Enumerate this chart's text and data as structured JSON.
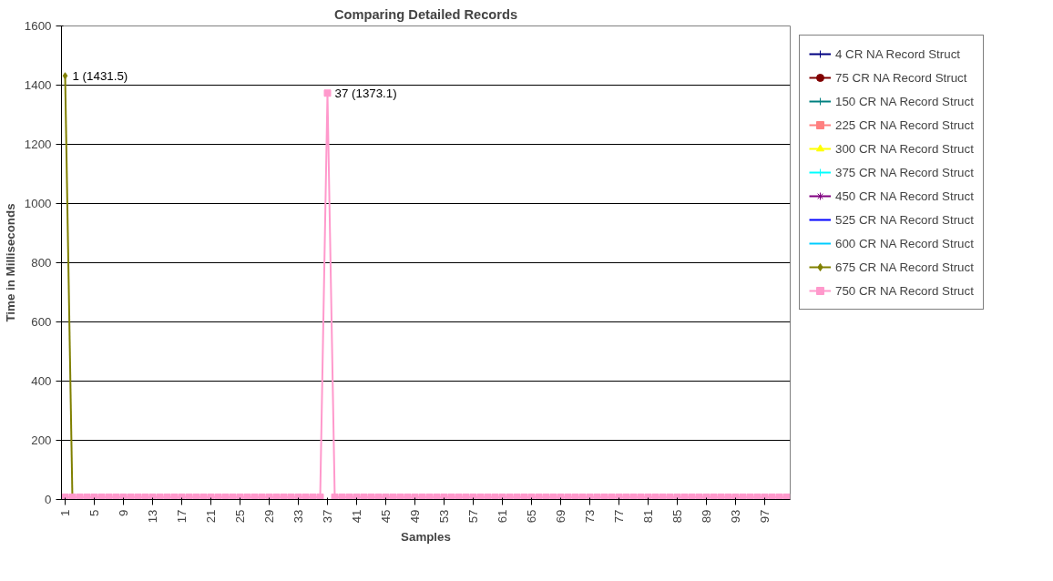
{
  "chart_data": {
    "type": "line",
    "title": "Comparing Detailed Records",
    "xlabel": "Samples",
    "ylabel": "Time in Milliseconds",
    "categories": [
      "1",
      null,
      null,
      null,
      "5",
      null,
      null,
      null,
      "9",
      null,
      null,
      null,
      "13",
      null,
      null,
      null,
      "17",
      null,
      null,
      null,
      "21",
      null,
      null,
      null,
      "25",
      null,
      null,
      null,
      "29",
      null,
      null,
      null,
      "33",
      null,
      null,
      null,
      "37",
      null,
      null,
      null,
      "41",
      null,
      null,
      null,
      "45",
      null,
      null,
      null,
      "49",
      null,
      null,
      null,
      "53",
      null,
      null,
      null,
      "57",
      null,
      null,
      null,
      "61",
      null,
      null,
      null,
      "65",
      null,
      null,
      null,
      "69",
      null,
      null,
      null,
      "73",
      null,
      null,
      null,
      "77",
      null,
      null,
      null,
      "81",
      null,
      null,
      null,
      "85",
      null,
      null,
      null,
      "89",
      null,
      null,
      null,
      "93",
      null,
      null,
      null,
      "97",
      null,
      null,
      null
    ],
    "ylim": [
      0,
      1600
    ],
    "yticks": [
      0,
      200,
      400,
      600,
      800,
      1000,
      1200,
      1400,
      1600
    ],
    "grid": "y",
    "legend": "right",
    "series": [
      {
        "name": "4 CR NA Record Struct",
        "color": "#000080",
        "marker": "cross",
        "values": [
          null,
          null,
          null,
          null,
          null,
          null,
          null,
          null,
          null,
          null,
          null,
          null,
          null,
          null,
          null,
          null,
          null,
          null,
          null,
          null,
          null,
          null,
          null,
          null,
          null,
          null,
          null,
          null,
          null,
          null,
          null,
          null,
          null,
          null,
          null,
          null,
          null,
          null,
          null,
          null,
          null,
          null,
          null,
          null,
          null,
          null,
          null,
          null,
          null,
          null,
          null,
          null,
          null,
          null,
          null,
          null,
          null,
          null,
          null,
          null,
          null,
          null,
          null,
          null,
          null,
          null,
          null,
          null,
          null,
          null,
          null,
          null,
          null,
          null,
          null,
          null,
          null,
          null,
          null,
          null,
          null,
          null,
          null,
          null,
          null,
          null,
          null,
          null,
          null,
          null,
          null,
          null,
          null,
          null,
          null,
          null,
          null,
          null,
          null,
          null
        ]
      },
      {
        "name": "75 CR NA Record Struct",
        "color": "#800000",
        "marker": "circle",
        "values": [
          null,
          null,
          null,
          null,
          null,
          null,
          null,
          null,
          null,
          null,
          null,
          null,
          null,
          null,
          null,
          null,
          null,
          null,
          null,
          null,
          null,
          null,
          null,
          null,
          null,
          null,
          null,
          null,
          null,
          null,
          null,
          null,
          null,
          null,
          null,
          null,
          null,
          null,
          null,
          null,
          null,
          null,
          null,
          null,
          null,
          null,
          null,
          null,
          null,
          null,
          null,
          null,
          null,
          null,
          null,
          null,
          null,
          null,
          null,
          null,
          null,
          null,
          null,
          null,
          null,
          null,
          null,
          null,
          null,
          null,
          null,
          null,
          null,
          null,
          null,
          null,
          null,
          null,
          null,
          null,
          null,
          null,
          null,
          null,
          null,
          null,
          null,
          null,
          null,
          null,
          null,
          null,
          null,
          null,
          null,
          null,
          null,
          null,
          null,
          null
        ]
      },
      {
        "name": "150 CR NA Record Struct",
        "color": "#008080",
        "marker": "cross",
        "values": [
          null,
          null,
          null,
          null,
          null,
          null,
          null,
          null,
          null,
          null,
          null,
          null,
          null,
          null,
          null,
          null,
          null,
          null,
          null,
          null,
          null,
          null,
          null,
          null,
          null,
          null,
          null,
          null,
          null,
          null,
          null,
          null,
          null,
          null,
          null,
          null,
          null,
          null,
          null,
          null,
          null,
          null,
          null,
          null,
          null,
          null,
          null,
          null,
          null,
          null,
          null,
          null,
          null,
          null,
          null,
          null,
          null,
          null,
          null,
          null,
          null,
          null,
          null,
          null,
          null,
          null,
          null,
          null,
          null,
          null,
          null,
          null,
          null,
          null,
          null,
          null,
          null,
          null,
          null,
          null,
          null,
          null,
          null,
          null,
          null,
          null,
          null,
          null,
          null,
          null,
          null,
          null,
          null,
          null,
          null,
          null,
          null,
          null,
          null,
          null
        ]
      },
      {
        "name": "225 CR NA Record Struct",
        "color": "#ff8080",
        "marker": "square",
        "values": [
          null,
          null,
          null,
          null,
          null,
          null,
          null,
          null,
          null,
          null,
          null,
          null,
          null,
          null,
          null,
          null,
          null,
          null,
          null,
          null,
          null,
          null,
          null,
          null,
          null,
          null,
          null,
          null,
          null,
          null,
          null,
          null,
          null,
          null,
          null,
          null,
          null,
          null,
          null,
          null,
          null,
          null,
          null,
          null,
          null,
          null,
          null,
          null,
          null,
          null,
          null,
          null,
          null,
          null,
          null,
          null,
          null,
          null,
          null,
          null,
          null,
          null,
          null,
          null,
          null,
          null,
          null,
          null,
          null,
          null,
          null,
          null,
          null,
          null,
          null,
          null,
          null,
          null,
          null,
          null,
          null,
          null,
          null,
          null,
          null,
          null,
          null,
          null,
          null,
          null,
          null,
          null,
          null,
          null,
          null,
          null,
          null,
          null,
          null,
          null
        ]
      },
      {
        "name": "300 CR NA Record Struct",
        "color": "#ffff00",
        "marker": "triangle",
        "values": [
          null,
          null,
          null,
          null,
          null,
          null,
          null,
          null,
          null,
          null,
          null,
          null,
          null,
          null,
          null,
          null,
          null,
          null,
          null,
          null,
          null,
          null,
          null,
          null,
          null,
          null,
          null,
          null,
          null,
          null,
          null,
          null,
          null,
          null,
          null,
          null,
          null,
          null,
          null,
          null,
          null,
          null,
          null,
          null,
          null,
          null,
          null,
          null,
          null,
          null,
          null,
          null,
          null,
          null,
          null,
          null,
          null,
          null,
          null,
          null,
          null,
          null,
          null,
          null,
          null,
          null,
          null,
          null,
          null,
          null,
          null,
          null,
          null,
          null,
          null,
          null,
          null,
          null,
          null,
          null,
          null,
          null,
          null,
          null,
          null,
          null,
          null,
          null,
          null,
          null,
          null,
          null,
          null,
          null,
          null,
          null,
          null,
          null,
          null,
          null
        ]
      },
      {
        "name": "375 CR NA Record Struct",
        "color": "#00ffff",
        "marker": "cross",
        "values": [
          null,
          null,
          null,
          null,
          null,
          null,
          null,
          null,
          null,
          null,
          null,
          null,
          null,
          null,
          null,
          null,
          null,
          null,
          null,
          null,
          null,
          null,
          null,
          null,
          null,
          null,
          null,
          null,
          null,
          null,
          null,
          null,
          null,
          null,
          null,
          null,
          null,
          null,
          null,
          null,
          null,
          null,
          null,
          null,
          null,
          null,
          null,
          null,
          null,
          null,
          null,
          null,
          null,
          null,
          null,
          null,
          null,
          null,
          null,
          null,
          null,
          null,
          null,
          null,
          null,
          null,
          null,
          null,
          null,
          null,
          null,
          null,
          null,
          null,
          null,
          null,
          null,
          null,
          null,
          null,
          null,
          null,
          null,
          null,
          null,
          null,
          null,
          null,
          null,
          null,
          null,
          null,
          null,
          null,
          null,
          null,
          null,
          null,
          null,
          null
        ]
      },
      {
        "name": "450 CR NA Record Struct",
        "color": "#800080",
        "marker": "star",
        "values": [
          null,
          null,
          null,
          null,
          null,
          null,
          null,
          null,
          null,
          null,
          null,
          null,
          null,
          null,
          null,
          null,
          null,
          null,
          null,
          null,
          null,
          null,
          null,
          null,
          null,
          null,
          null,
          null,
          null,
          null,
          null,
          null,
          null,
          null,
          null,
          null,
          null,
          null,
          null,
          null,
          null,
          null,
          null,
          null,
          null,
          null,
          null,
          null,
          null,
          null,
          null,
          null,
          null,
          null,
          null,
          null,
          null,
          null,
          null,
          null,
          null,
          null,
          null,
          null,
          null,
          null,
          null,
          null,
          null,
          null,
          null,
          null,
          null,
          null,
          null,
          null,
          null,
          null,
          null,
          null,
          null,
          null,
          null,
          null,
          null,
          null,
          null,
          null,
          null,
          null,
          null,
          null,
          null,
          null,
          null,
          null,
          null,
          null,
          null,
          null
        ]
      },
      {
        "name": "525 CR NA Record Struct",
        "color": "#0000ff",
        "marker": "none",
        "values": [
          null,
          null,
          null,
          null,
          null,
          null,
          null,
          null,
          null,
          null,
          null,
          null,
          null,
          null,
          null,
          null,
          null,
          null,
          null,
          null,
          null,
          null,
          null,
          null,
          null,
          null,
          null,
          null,
          null,
          null,
          null,
          null,
          null,
          null,
          null,
          null,
          null,
          null,
          null,
          null,
          null,
          null,
          null,
          null,
          null,
          null,
          null,
          null,
          null,
          null,
          null,
          null,
          null,
          null,
          null,
          null,
          null,
          null,
          null,
          null,
          null,
          null,
          null,
          null,
          null,
          null,
          null,
          null,
          null,
          null,
          null,
          null,
          null,
          null,
          null,
          null,
          null,
          null,
          null,
          null,
          null,
          null,
          null,
          null,
          null,
          null,
          null,
          null,
          null,
          null,
          null,
          null,
          null,
          null,
          null,
          null,
          null,
          null,
          null,
          null
        ]
      },
      {
        "name": "600 CR NA Record Struct",
        "color": "#00ccff",
        "marker": "none",
        "values": [
          null,
          null,
          null,
          null,
          null,
          null,
          null,
          null,
          null,
          null,
          null,
          null,
          null,
          null,
          null,
          null,
          null,
          null,
          null,
          null,
          null,
          null,
          null,
          null,
          null,
          null,
          null,
          null,
          null,
          null,
          null,
          null,
          null,
          null,
          null,
          null,
          null,
          null,
          null,
          null,
          null,
          null,
          null,
          null,
          null,
          null,
          null,
          null,
          null,
          null,
          null,
          null,
          null,
          null,
          null,
          null,
          null,
          null,
          null,
          null,
          null,
          null,
          null,
          null,
          null,
          null,
          null,
          null,
          null,
          null,
          null,
          null,
          null,
          null,
          null,
          null,
          null,
          null,
          null,
          null,
          null,
          null,
          null,
          null,
          null,
          null,
          null,
          null,
          null,
          null,
          null,
          null,
          null,
          null,
          null,
          null,
          null,
          null,
          null,
          null
        ]
      },
      {
        "name": "675 CR NA Record Struct",
        "color": "#808000",
        "marker": "diamond",
        "values": [
          1431.5,
          2,
          null,
          null,
          null,
          null,
          null,
          null,
          null,
          null,
          null,
          null,
          null,
          null,
          null,
          null,
          null,
          null,
          null,
          null,
          null,
          null,
          null,
          null,
          null,
          null,
          null,
          null,
          null,
          null,
          null,
          null,
          null,
          null,
          null,
          null,
          null,
          null,
          null,
          null,
          null,
          null,
          null,
          null,
          null,
          null,
          null,
          null,
          null,
          null,
          null,
          null,
          null,
          null,
          null,
          null,
          null,
          null,
          null,
          null,
          null,
          null,
          null,
          null,
          null,
          null,
          null,
          null,
          null,
          null,
          null,
          null,
          null,
          null,
          null,
          null,
          null,
          null,
          null,
          null,
          null,
          null,
          null,
          null,
          null,
          null,
          null,
          null,
          null,
          null,
          null,
          null,
          null,
          null,
          null,
          null,
          null,
          null,
          null,
          null
        ],
        "value_labels": [
          "1 (1431.5)",
          null,
          null,
          null,
          null,
          null,
          null,
          null,
          null,
          null,
          null,
          null,
          null,
          null,
          null,
          null,
          null,
          null,
          null,
          null,
          null,
          null,
          null,
          null,
          null,
          null,
          null,
          null,
          null,
          null,
          null,
          null,
          null,
          null,
          null,
          null,
          null,
          null,
          null,
          null,
          null,
          null,
          null,
          null,
          null,
          null,
          null,
          null,
          null,
          null,
          null,
          null,
          null,
          null,
          null,
          null,
          null,
          null,
          null,
          null,
          null,
          null,
          null,
          null,
          null,
          null,
          null,
          null,
          null,
          null,
          null,
          null,
          null,
          null,
          null,
          null,
          null,
          null,
          null,
          null,
          null,
          null,
          null,
          null,
          null,
          null,
          null,
          null,
          null,
          null,
          null,
          null,
          null,
          null,
          null,
          null,
          null,
          null,
          null,
          null
        ]
      },
      {
        "name": "750 CR NA Record Struct",
        "color": "#ff99cc",
        "marker": "square",
        "values": [
          8,
          8,
          8,
          8,
          8,
          8,
          8,
          8,
          8,
          8,
          8,
          8,
          8,
          8,
          8,
          8,
          8,
          8,
          8,
          8,
          8,
          8,
          8,
          8,
          8,
          8,
          8,
          8,
          8,
          8,
          8,
          8,
          8,
          8,
          8,
          8,
          1373.1,
          8,
          8,
          8,
          8,
          8,
          8,
          8,
          8,
          8,
          8,
          8,
          8,
          8,
          8,
          8,
          8,
          8,
          8,
          8,
          8,
          8,
          8,
          8,
          8,
          8,
          8,
          8,
          8,
          8,
          8,
          8,
          8,
          8,
          8,
          8,
          8,
          8,
          8,
          8,
          8,
          8,
          8,
          8,
          8,
          8,
          8,
          8,
          8,
          8,
          8,
          8,
          8,
          8,
          8,
          8,
          8,
          8,
          8,
          8,
          8,
          8,
          8,
          8
        ],
        "value_labels": [
          null,
          null,
          null,
          null,
          null,
          null,
          null,
          null,
          null,
          null,
          null,
          null,
          null,
          null,
          null,
          null,
          null,
          null,
          null,
          null,
          null,
          null,
          null,
          null,
          null,
          null,
          null,
          null,
          null,
          null,
          null,
          null,
          null,
          null,
          null,
          null,
          "37 (1373.1)",
          null,
          null,
          null,
          null,
          null,
          null,
          null,
          null,
          null,
          null,
          null,
          null,
          null,
          null,
          null,
          null,
          null,
          null,
          null,
          null,
          null,
          null,
          null,
          null,
          null,
          null,
          null,
          null,
          null,
          null,
          null,
          null,
          null,
          null,
          null,
          null,
          null,
          null,
          null,
          null,
          null,
          null,
          null,
          null,
          null,
          null,
          null,
          null,
          null,
          null,
          null,
          null,
          null,
          null,
          null,
          null,
          null,
          null,
          null,
          null,
          null,
          null,
          null
        ]
      }
    ]
  }
}
